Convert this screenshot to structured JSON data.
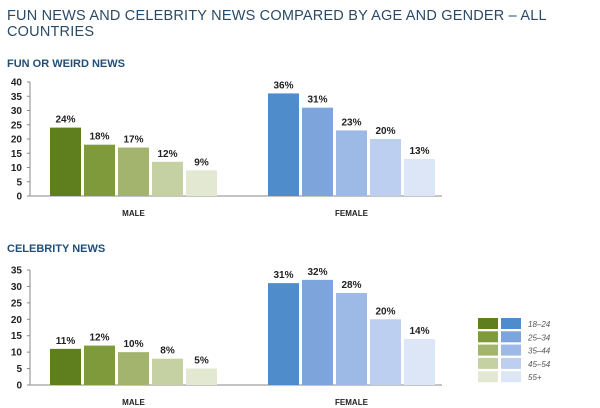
{
  "title": "FUN NEWS AND CELEBRITY NEWS COMPARED BY AGE AND GENDER  – ALL COUNTRIES",
  "chart_data": [
    {
      "type": "bar",
      "title": "FUN OR WEIRD NEWS",
      "categories": [
        "MALE",
        "FEMALE"
      ],
      "ylim": [
        0,
        40
      ],
      "yticks": [
        0,
        5,
        10,
        15,
        20,
        25,
        30,
        35,
        40
      ],
      "series": [
        {
          "name": "18–24",
          "values": [
            24,
            36
          ]
        },
        {
          "name": "25–34",
          "values": [
            18,
            31
          ]
        },
        {
          "name": "35–44",
          "values": [
            17,
            23
          ]
        },
        {
          "name": "45–54",
          "values": [
            12,
            20
          ]
        },
        {
          "name": "55+",
          "values": [
            9,
            13
          ]
        }
      ]
    },
    {
      "type": "bar",
      "title": "CELEBRITY NEWS",
      "categories": [
        "MALE",
        "FEMALE"
      ],
      "ylim": [
        0,
        35
      ],
      "yticks": [
        0,
        5,
        10,
        15,
        20,
        25,
        30,
        35
      ],
      "series": [
        {
          "name": "18–24",
          "values": [
            11,
            31
          ]
        },
        {
          "name": "25–34",
          "values": [
            12,
            32
          ]
        },
        {
          "name": "35–44",
          "values": [
            10,
            28
          ]
        },
        {
          "name": "45–54",
          "values": [
            8,
            20
          ]
        },
        {
          "name": "55+",
          "values": [
            5,
            14
          ]
        }
      ]
    }
  ],
  "colors": {
    "male": [
      "#5f7f1f",
      "#7e9a3b",
      "#a3b46e",
      "#c5d1a3",
      "#e2e8d2"
    ],
    "female": [
      "#4f8ccb",
      "#7da5dc",
      "#9db9e6",
      "#bccff0",
      "#dde6f7"
    ]
  },
  "legend": [
    "18–24",
    "25–34",
    "35–44",
    "45–54",
    "55+"
  ]
}
